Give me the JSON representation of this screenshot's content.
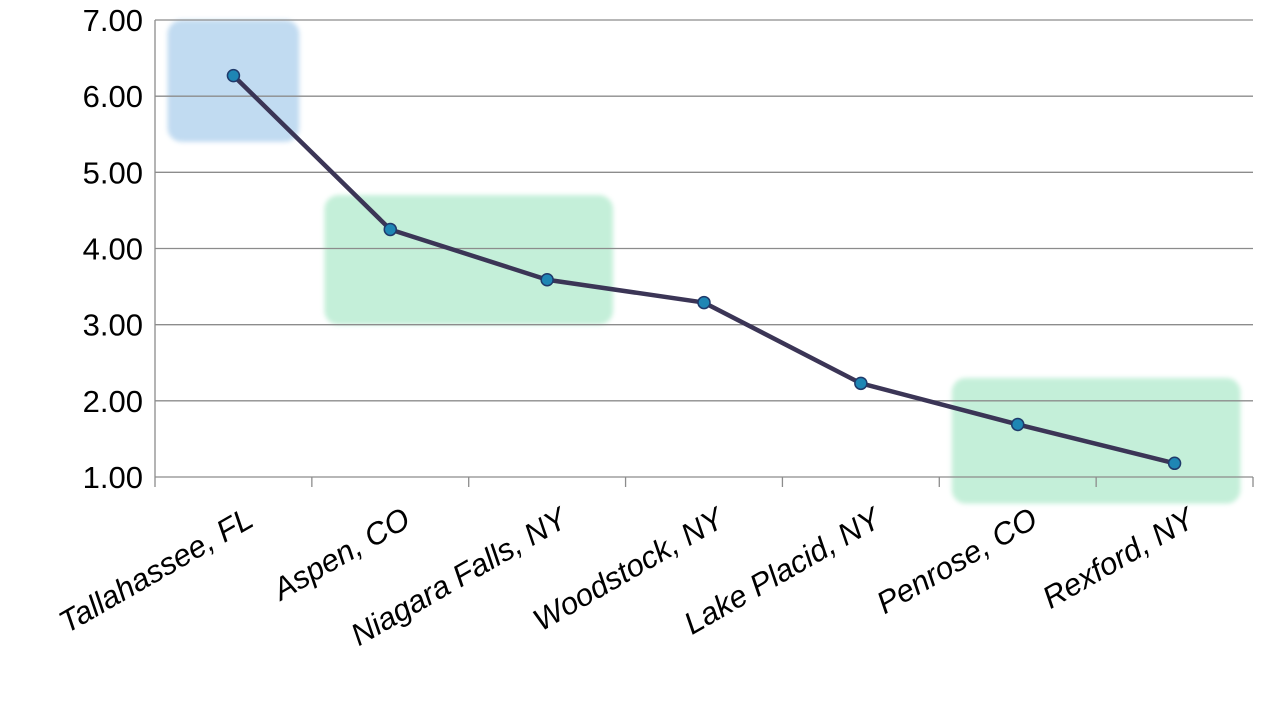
{
  "chart_data": {
    "type": "line",
    "title": "",
    "xlabel": "",
    "ylabel": "",
    "categories": [
      "Tallahassee, FL",
      "Aspen, CO",
      "Niagara Falls, NY",
      "Woodstock, NY",
      "Lake Placid, NY",
      "Penrose, CO",
      "Rexford, NY"
    ],
    "series": [
      {
        "values": [
          6.27,
          4.25,
          3.59,
          3.29,
          2.23,
          1.69,
          1.18
        ]
      }
    ],
    "ylim": [
      1,
      7
    ],
    "yticks": [
      "1.00",
      "2.00",
      "3.00",
      "4.00",
      "5.00",
      "6.00",
      "7.00"
    ],
    "grid": true,
    "colors": {
      "line": "#3b3556",
      "marker_fill": "#1e86b4",
      "marker_stroke": "#1f3a6b",
      "highlight_blue": "#bcd8f0",
      "highlight_green": "#bfeed6",
      "grid": "#8c8c8c"
    },
    "highlights": [
      {
        "color": "blue",
        "x_from": 0,
        "x_to": 0,
        "y_from": 5.4,
        "y_to": 7.0
      },
      {
        "color": "green",
        "x_from": 1,
        "x_to": 2,
        "y_from": 3.0,
        "y_to": 4.7
      },
      {
        "color": "green",
        "x_from": 5,
        "x_to": 6,
        "y_from": 0.65,
        "y_to": 2.3
      }
    ]
  }
}
